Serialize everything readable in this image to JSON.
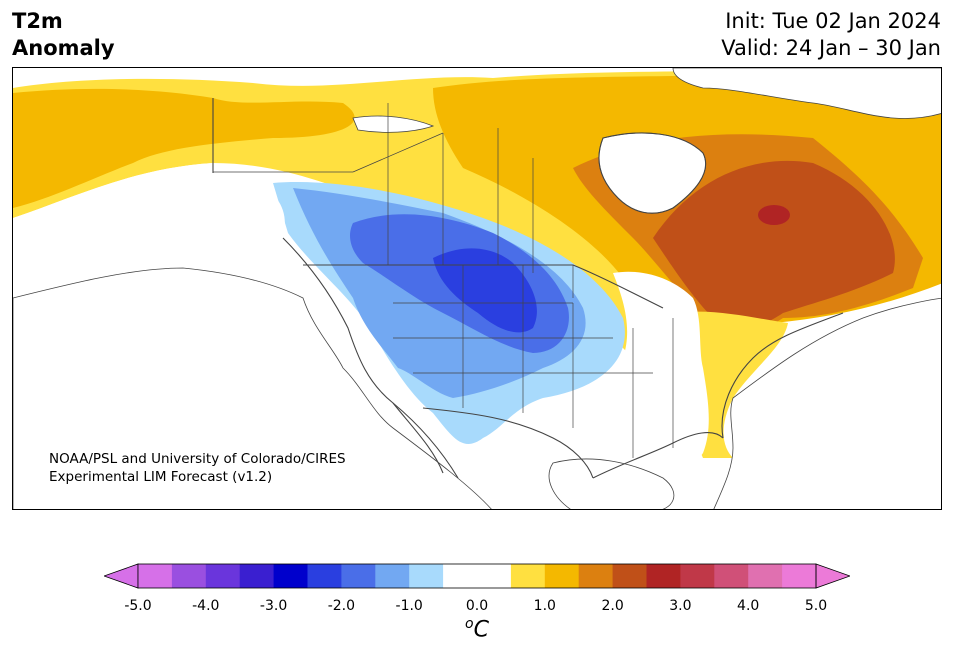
{
  "title": {
    "left_line1": "T2m",
    "left_line2": "Anomaly",
    "init": "Init: Tue 02 Jan 2024",
    "valid": "Valid: 24 Jan – 30 Jan"
  },
  "credit": {
    "line1": "NOAA/PSL and University of Colorado/CIRES",
    "line2": "Experimental LIM Forecast (v1.2)"
  },
  "colorbar": {
    "unit": "C",
    "unit_sup": "o",
    "ticks": [
      "-5.0",
      "-4.0",
      "-3.0",
      "-2.0",
      "-1.0",
      "0.0",
      "1.0",
      "2.0",
      "3.0",
      "4.0",
      "5.0"
    ],
    "colors": [
      "#d670e8",
      "#9a4fe0",
      "#6a35dc",
      "#3a1fd0",
      "#0000cc",
      "#2a3fe0",
      "#4a6ee8",
      "#72a8f2",
      "#a8dafc",
      "#ffffff",
      "#ffffff",
      "#ffe040",
      "#f4b800",
      "#dc8010",
      "#c05018",
      "#b02424",
      "#c03848",
      "#d05078",
      "#e070b0",
      "#ec7ad8"
    ],
    "under_color": "#d670e8",
    "over_color": "#ec7ad8"
  },
  "map_colors": {
    "ocean": "#ffffff",
    "neutral": "#ffffff",
    "warm1": "#ffe040",
    "warm2": "#f4b800",
    "warm3": "#dc8010",
    "warm4": "#c05018",
    "warm5": "#b02424",
    "cool1": "#a8dafc",
    "cool2": "#72a8f2",
    "cool3": "#4a6ee8",
    "cool4": "#2a3fe0",
    "border": "#444444"
  }
}
